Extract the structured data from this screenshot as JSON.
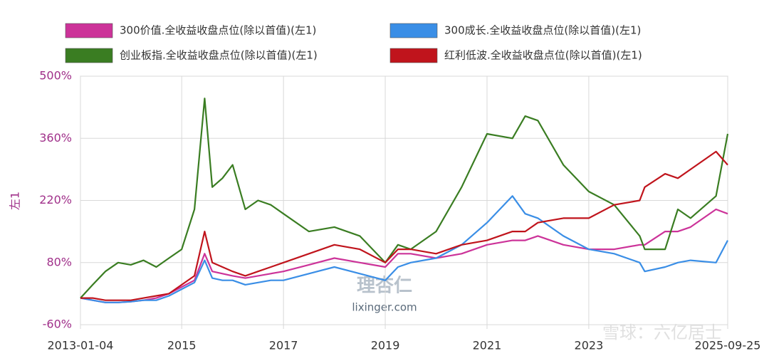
{
  "chart_data": {
    "type": "line",
    "y_label": "左1",
    "x": [
      2013.01,
      2013.25,
      2013.5,
      2013.75,
      2014.0,
      2014.25,
      2014.5,
      2014.75,
      2015.0,
      2015.25,
      2015.45,
      2015.6,
      2015.8,
      2016.0,
      2016.25,
      2016.5,
      2016.75,
      2017.0,
      2017.5,
      2018.0,
      2018.5,
      2019.0,
      2019.25,
      2019.5,
      2020.0,
      2020.5,
      2021.0,
      2021.5,
      2021.75,
      2022.0,
      2022.5,
      2023.0,
      2023.5,
      2024.0,
      2024.1,
      2024.5,
      2024.75,
      2025.0,
      2025.5,
      2025.73
    ],
    "series": [
      {
        "name": "300价值.全收益收盘点位(除以首值)(左1)",
        "color": "#cc3399",
        "values": [
          0,
          -5,
          -10,
          -10,
          -8,
          -5,
          0,
          10,
          25,
          40,
          100,
          60,
          55,
          50,
          45,
          50,
          55,
          60,
          75,
          90,
          80,
          70,
          100,
          100,
          90,
          100,
          120,
          130,
          130,
          140,
          120,
          110,
          110,
          120,
          120,
          150,
          150,
          160,
          200,
          190
        ]
      },
      {
        "name": "300成长.全收益收盘点位(除以首值)(左1)",
        "color": "#3a8ee6",
        "values": [
          0,
          -5,
          -10,
          -10,
          -8,
          -5,
          -5,
          5,
          20,
          35,
          85,
          45,
          40,
          40,
          30,
          35,
          40,
          40,
          55,
          70,
          55,
          40,
          70,
          80,
          90,
          120,
          170,
          230,
          190,
          180,
          140,
          110,
          100,
          80,
          60,
          70,
          80,
          85,
          80,
          130
        ]
      },
      {
        "name": "创业板指.全收益收盘点位(除以首值)(左1)",
        "color": "#3a7d22",
        "values": [
          0,
          30,
          60,
          80,
          75,
          85,
          70,
          90,
          110,
          200,
          450,
          250,
          270,
          300,
          200,
          220,
          210,
          190,
          150,
          160,
          140,
          80,
          120,
          110,
          150,
          250,
          370,
          360,
          410,
          400,
          300,
          240,
          210,
          140,
          110,
          110,
          200,
          180,
          230,
          370
        ]
      },
      {
        "name": "红利低波.全收益收盘点位(除以首值)(左1)",
        "color": "#c0141c",
        "values": [
          0,
          0,
          -5,
          -5,
          -5,
          0,
          5,
          10,
          30,
          50,
          150,
          80,
          70,
          60,
          50,
          60,
          70,
          80,
          100,
          120,
          110,
          80,
          110,
          110,
          100,
          120,
          130,
          150,
          150,
          170,
          180,
          180,
          210,
          220,
          250,
          280,
          270,
          290,
          330,
          300
        ]
      }
    ],
    "xlim": [
      2013.01,
      2025.73
    ],
    "xticks": [
      {
        "value": 2013.01,
        "label": "2013-01-04"
      },
      2015,
      2017,
      2019,
      2021,
      2023,
      {
        "value": 2025.73,
        "label": "2025-09-25"
      }
    ],
    "ylim": [
      -60,
      500
    ],
    "yticks": [
      {
        "value": -60,
        "label": "-60%"
      },
      {
        "value": 80,
        "label": "80%"
      },
      {
        "value": 220,
        "label": "220%"
      },
      {
        "value": 360,
        "label": "360%"
      },
      {
        "value": 500,
        "label": "500%"
      }
    ],
    "grid": true,
    "annotations": [
      "理杏仁",
      "lixinger.com",
      "雪球：六亿居士"
    ]
  }
}
